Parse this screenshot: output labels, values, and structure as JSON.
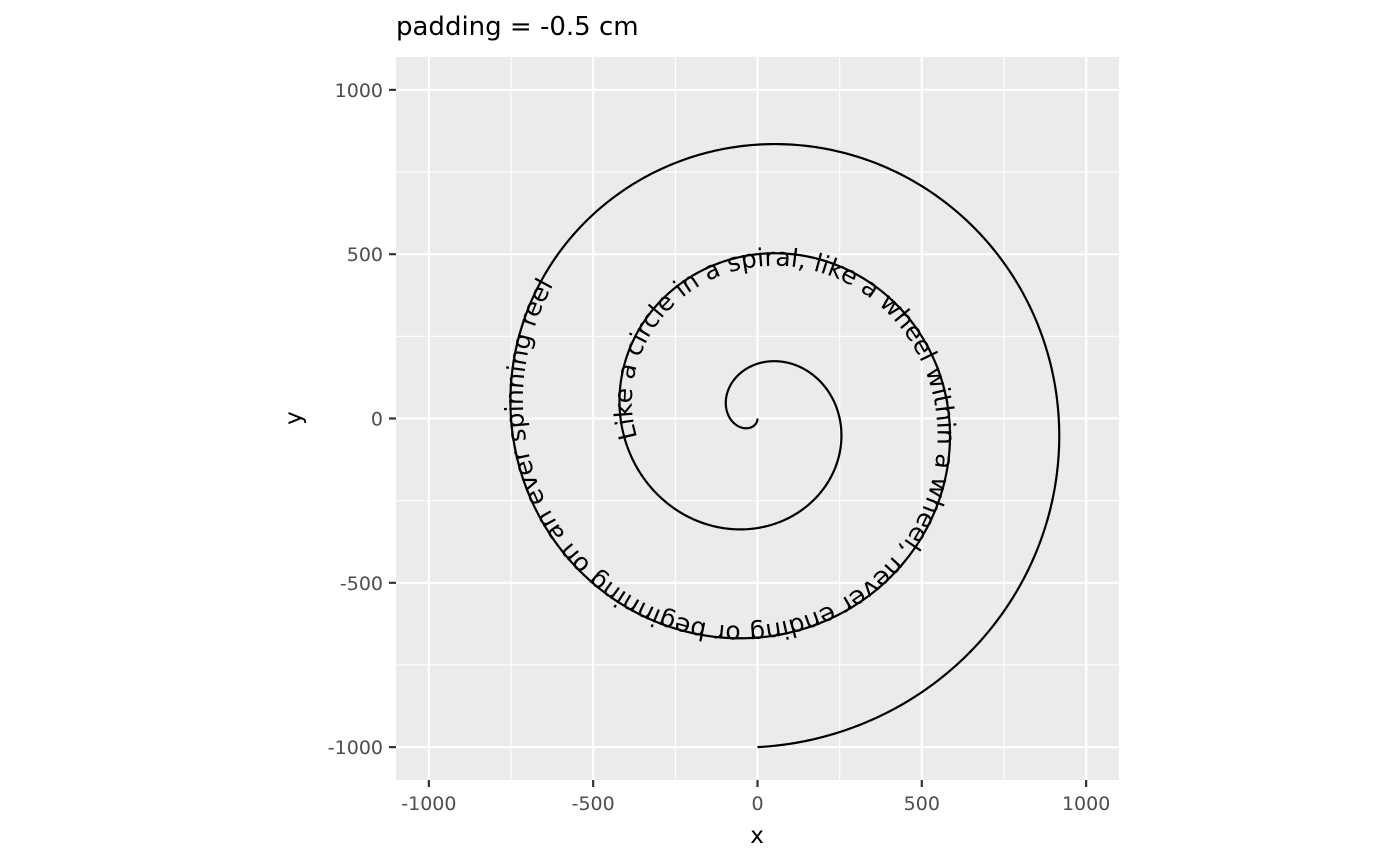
{
  "chart_data": {
    "type": "line",
    "title": "padding = -0.5 cm",
    "xlabel": "x",
    "ylabel": "y",
    "xlim": [
      -1100,
      1100
    ],
    "ylim": [
      -1100,
      1100
    ],
    "x_ticks": [
      -1000,
      -500,
      0,
      500,
      1000
    ],
    "y_ticks": [
      -1000,
      -500,
      0,
      500,
      1000
    ],
    "x_tick_labels": [
      "-1000",
      "-500",
      "0",
      "500",
      "1000"
    ],
    "y_tick_labels": [
      "-1000",
      "-500",
      "0",
      "500",
      "1000"
    ],
    "grid": true,
    "legend": "none",
    "colors": {
      "panel": "#ebebeb",
      "grid": "#ffffff",
      "line": "#000000"
    },
    "series": [
      {
        "curve": "spiral",
        "from": [
          0,
          -1000
        ],
        "to": [
          0,
          0
        ],
        "turns": 3,
        "max_radius": 1000
      }
    ],
    "annotations": [
      {
        "text": "Like a circle in a spiral, like a wheel within a wheel, never ending or beginning on an ever spinning reel",
        "placement": "along-path"
      }
    ]
  }
}
